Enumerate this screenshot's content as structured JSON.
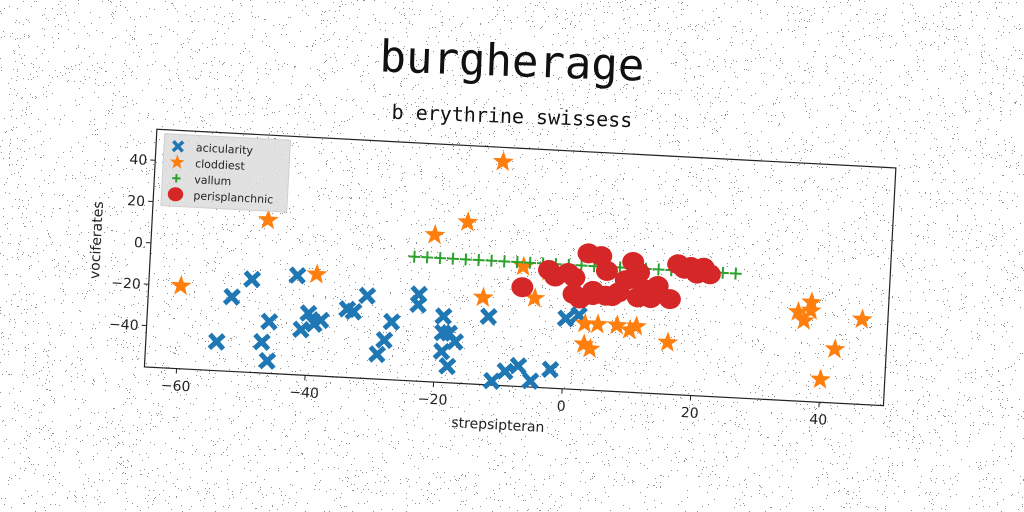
{
  "chart_data": {
    "type": "scatter",
    "title": "burgherage",
    "subtitle": "b erythrine swissess",
    "xlabel": "strepsipteran",
    "ylabel": "vociferates",
    "xlim": [
      -65,
      50
    ],
    "ylim": [
      -60,
      55
    ],
    "xticks": [
      -60,
      -40,
      -20,
      0,
      20,
      40
    ],
    "yticks": [
      -40,
      -20,
      0,
      20,
      40
    ],
    "grid": false,
    "legend_position": "top-left",
    "colors": {
      "aciculartiy": "#1f77b4",
      "cloddiest": "#ff7f0e",
      "vallum": "#2ca02c",
      "perisplanchnic": "#d62728"
    },
    "series": [
      {
        "name": "acicularity",
        "marker": "x-icon",
        "color": "#1f77b4",
        "points": [
          [
            -54,
            -46
          ],
          [
            -52,
            -24
          ],
          [
            -49,
            -15
          ],
          [
            -47,
            -45
          ],
          [
            -46,
            -54
          ],
          [
            -46,
            -35
          ],
          [
            -42,
            -12
          ],
          [
            -41,
            -38
          ],
          [
            -40,
            -30
          ],
          [
            -39,
            -35
          ],
          [
            -38,
            -33
          ],
          [
            -34,
            -27
          ],
          [
            -33,
            -28
          ],
          [
            -31,
            -20
          ],
          [
            -29,
            -48
          ],
          [
            -28,
            -41
          ],
          [
            -27,
            -32
          ],
          [
            -23,
            -18
          ],
          [
            -23,
            -23
          ],
          [
            -19,
            -28
          ],
          [
            -19,
            -36
          ],
          [
            -19,
            -45
          ],
          [
            -18,
            -52
          ],
          [
            -18,
            -36
          ],
          [
            -17,
            -40
          ],
          [
            -12,
            -27
          ],
          [
            -11,
            -58
          ],
          [
            -9,
            -53
          ],
          [
            -7,
            -50
          ],
          [
            -5,
            -57
          ],
          [
            -2,
            -51
          ],
          [
            0,
            -26
          ],
          [
            2,
            -24
          ]
        ]
      },
      {
        "name": "cloddiest",
        "marker": "star-icon",
        "color": "#ff7f0e",
        "points": [
          [
            -60,
            -20
          ],
          [
            -47,
            14
          ],
          [
            -39,
            -11
          ],
          [
            -21,
            11
          ],
          [
            -16,
            18
          ],
          [
            -13,
            -18
          ],
          [
            -11,
            48
          ],
          [
            -7,
            -2
          ],
          [
            -3,
            -4
          ],
          [
            -5,
            -17
          ],
          [
            3,
            -38
          ],
          [
            3,
            -28
          ],
          [
            4,
            -40
          ],
          [
            5,
            -28
          ],
          [
            8,
            -28
          ],
          [
            10,
            -30
          ],
          [
            11,
            -28
          ],
          [
            16,
            -35
          ],
          [
            36,
            -17
          ],
          [
            37,
            -21
          ],
          [
            38,
            -16
          ],
          [
            38,
            -12
          ],
          [
            40,
            -49
          ],
          [
            42,
            -34
          ],
          [
            46,
            -19
          ]
        ]
      },
      {
        "name": "vallum",
        "marker": "plus-icon",
        "color": "#2ca02c",
        "points": [
          [
            -24,
            0
          ],
          [
            -22,
            0
          ],
          [
            -20,
            0
          ],
          [
            -18,
            0
          ],
          [
            -16,
            0
          ],
          [
            -14,
            0
          ],
          [
            -12,
            0
          ],
          [
            -10,
            0
          ],
          [
            -8,
            0
          ],
          [
            -6,
            0
          ],
          [
            -4,
            0
          ],
          [
            -2,
            0
          ],
          [
            0,
            0
          ],
          [
            2,
            0
          ],
          [
            4,
            0
          ],
          [
            6,
            0
          ],
          [
            8,
            0
          ],
          [
            10,
            0
          ],
          [
            12,
            0
          ],
          [
            14,
            0
          ],
          [
            16,
            0
          ],
          [
            18,
            0
          ],
          [
            20,
            0
          ],
          [
            22,
            0
          ],
          [
            24,
            0
          ],
          [
            26,
            0
          ]
        ]
      },
      {
        "name": "perisplanchnic",
        "marker": "circle-icon",
        "color": "#d62728",
        "points": [
          [
            -7,
            -12
          ],
          [
            -3,
            -3
          ],
          [
            -2,
            -6
          ],
          [
            0,
            -4
          ],
          [
            1,
            -6
          ],
          [
            1,
            -14
          ],
          [
            2,
            -16
          ],
          [
            3,
            6
          ],
          [
            4,
            -12
          ],
          [
            4,
            -14
          ],
          [
            5,
            5
          ],
          [
            6,
            -2
          ],
          [
            6,
            -14
          ],
          [
            7,
            -14
          ],
          [
            8,
            -12
          ],
          [
            9,
            -6
          ],
          [
            10,
            3
          ],
          [
            10,
            -5
          ],
          [
            11,
            -14
          ],
          [
            11,
            -2
          ],
          [
            12,
            -10
          ],
          [
            13,
            -14
          ],
          [
            14,
            -8
          ],
          [
            16,
            -14
          ],
          [
            17,
            3
          ],
          [
            18,
            1
          ],
          [
            19,
            2
          ],
          [
            20,
            -1
          ],
          [
            21,
            2
          ],
          [
            22,
            -1
          ]
        ]
      }
    ]
  }
}
